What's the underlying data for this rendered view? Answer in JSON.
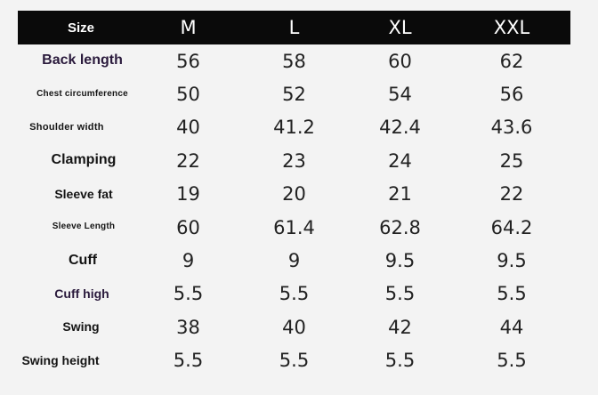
{
  "table": {
    "header": {
      "label": "Size",
      "sizes": [
        "M",
        "L",
        "XL",
        "XXL"
      ]
    },
    "rows": [
      {
        "label": "Back length",
        "values": [
          "56",
          "58",
          "60",
          "62"
        ]
      },
      {
        "label": "Chest circumference",
        "values": [
          "50",
          "52",
          "54",
          "56"
        ]
      },
      {
        "label": "Shoulder width",
        "values": [
          "40",
          "41.2",
          "42.4",
          "43.6"
        ]
      },
      {
        "label": "Clamping",
        "values": [
          "22",
          "23",
          "24",
          "25"
        ]
      },
      {
        "label": "Sleeve fat",
        "values": [
          "19",
          "20",
          "21",
          "22"
        ]
      },
      {
        "label": "Sleeve Length",
        "values": [
          "60",
          "61.4",
          "62.8",
          "64.2"
        ]
      },
      {
        "label": "Cuff",
        "values": [
          "9",
          "9",
          "9.5",
          "9.5"
        ]
      },
      {
        "label": "Cuff high",
        "values": [
          "5.5",
          "5.5",
          "5.5",
          "5.5"
        ]
      },
      {
        "label": "Swing",
        "values": [
          "38",
          "40",
          "42",
          "44"
        ]
      },
      {
        "label": "Swing height",
        "values": [
          "5.5",
          "5.5",
          "5.5",
          "5.5"
        ]
      }
    ]
  },
  "colors": {
    "header_background": "#0a0a0a",
    "header_text": "#ffffff",
    "page_background": "#f3f3f3",
    "body_text": "#222222"
  }
}
